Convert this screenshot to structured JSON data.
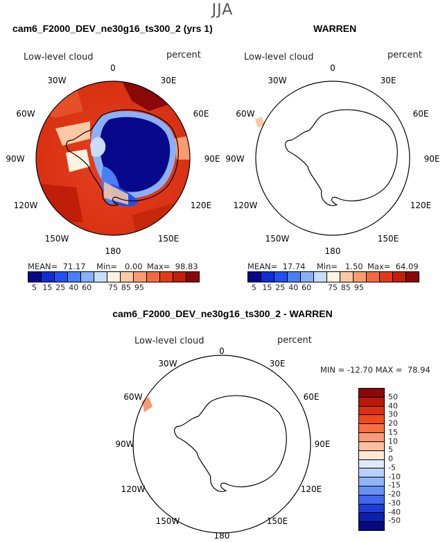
{
  "figure": {
    "title": "JJA",
    "variable_label": "Low-level cloud",
    "units_label": "percent"
  },
  "panels": [
    {
      "title": "cam6_F2000_DEV_ne30g16_ts300_2 (yrs 1)",
      "mean": "MEAN=  71.17",
      "min": "Min=   0.00",
      "max": "Max=  98.83"
    },
    {
      "title": "WARREN",
      "mean": "MEAN=  17.74",
      "min": "Min=   1.50",
      "max": "Max=  64.09"
    }
  ],
  "diff_panel": {
    "title": "cam6_F2000_DEV_ne30g16_ts300_2 - WARREN",
    "minmax": "MIN = -12.70 MAX =  78.94"
  },
  "lon_labels": {
    "0": "0",
    "30e": "30E",
    "60e": "60E",
    "90e": "90E",
    "120e": "120E",
    "150e": "150E",
    "180": "180",
    "150w": "150W",
    "120w": "120W",
    "90w": "90W",
    "60w": "60W",
    "30w": "30W"
  },
  "colorbar_abs": {
    "ticks": [
      "5",
      "15",
      "25",
      "40",
      "60",
      "75",
      "85",
      "95"
    ],
    "colors": [
      "#08088a",
      "#0f2fd0",
      "#2050f0",
      "#4a7ef5",
      "#8ab0f8",
      "#c8dcfc",
      "#fff2e0",
      "#fcc9a4",
      "#f99a70",
      "#f26a40",
      "#e03a18",
      "#c02008",
      "#8a0808"
    ]
  },
  "colorbar_diff": {
    "ticks": [
      "50",
      "40",
      "30",
      "20",
      "15",
      "10",
      "5",
      "0",
      "-5",
      "-10",
      "-15",
      "-20",
      "-30",
      "-40",
      "-50"
    ],
    "colors": [
      "#8a0808",
      "#b81a08",
      "#d83010",
      "#f04a1a",
      "#f87040",
      "#fb9a78",
      "#fcc0a0",
      "#fde8d4",
      "#deeafb",
      "#b8d0fa",
      "#90b4f8",
      "#6890f5",
      "#4068ee",
      "#1c3ed8",
      "#0a20b0",
      "#060a80"
    ]
  },
  "chart_data": [
    {
      "type": "heatmap",
      "title": "cam6_F2000_DEV_ne30g16_ts300_2 (yrs 1)",
      "projection": "south polar stereographic",
      "variable": "Low-level cloud",
      "units": "percent",
      "mean": 71.17,
      "min": 0.0,
      "max": 98.83,
      "levels": [
        5,
        15,
        25,
        40,
        60,
        75,
        85,
        95
      ]
    },
    {
      "type": "heatmap",
      "title": "WARREN",
      "projection": "south polar stereographic",
      "variable": "Low-level cloud",
      "units": "percent",
      "mean": 17.74,
      "min": 1.5,
      "max": 64.09,
      "levels": [
        5,
        15,
        25,
        40,
        60,
        75,
        85,
        95
      ]
    },
    {
      "type": "heatmap",
      "title": "cam6_F2000_DEV_ne30g16_ts300_2 - WARREN",
      "projection": "south polar stereographic",
      "variable": "Low-level cloud",
      "units": "percent",
      "min": -12.7,
      "max": 78.94,
      "levels": [
        -50,
        -40,
        -30,
        -20,
        -15,
        -10,
        -5,
        0,
        5,
        10,
        15,
        20,
        30,
        40,
        50
      ]
    }
  ]
}
